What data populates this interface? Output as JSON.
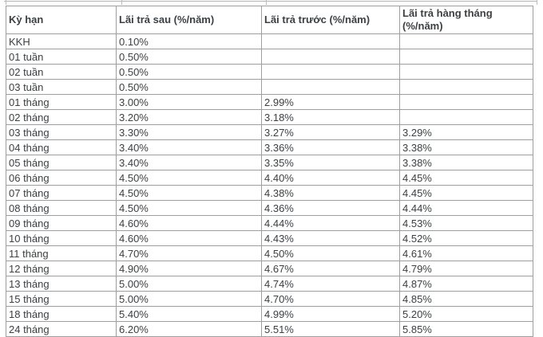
{
  "table": {
    "columns": [
      "Kỳ hạn",
      "Lãi trả sau (%/năm)",
      "Lãi trả trước (%/năm)",
      "Lãi trả hàng tháng (%/năm)"
    ],
    "column_keys": [
      "term",
      "interest-paid-after",
      "interest-paid-before",
      "interest-paid-monthly"
    ],
    "rows": [
      [
        "KKH",
        "0.10%",
        "",
        ""
      ],
      [
        "01 tuần",
        "0.50%",
        "",
        ""
      ],
      [
        "02 tuần",
        "0.50%",
        "",
        ""
      ],
      [
        "03 tuần",
        "0.50%",
        "",
        ""
      ],
      [
        "01 tháng",
        "3.00%",
        "2.99%",
        ""
      ],
      [
        "02 tháng",
        "3.20%",
        "3.18%",
        ""
      ],
      [
        "03 tháng",
        "3.30%",
        "3.27%",
        "3.29%"
      ],
      [
        "04 tháng",
        "3.40%",
        "3.36%",
        "3.38%"
      ],
      [
        "05 tháng",
        "3.40%",
        "3.35%",
        "3.38%"
      ],
      [
        "06 tháng",
        "4.50%",
        "4.40%",
        "4.45%"
      ],
      [
        "07 tháng",
        "4.50%",
        "4.38%",
        "4.45%"
      ],
      [
        "08 tháng",
        "4.50%",
        "4.36%",
        "4.44%"
      ],
      [
        "09 tháng",
        "4.60%",
        "4.44%",
        "4.53%"
      ],
      [
        "10 tháng",
        "4.60%",
        "4.43%",
        "4.52%"
      ],
      [
        "11 tháng",
        "4.70%",
        "4.50%",
        "4.61%"
      ],
      [
        "12 tháng",
        "4.90%",
        "4.67%",
        "4.79%"
      ],
      [
        "13 tháng",
        "5.00%",
        "4.74%",
        "4.87%"
      ],
      [
        "15 tháng",
        "5.00%",
        "4.70%",
        "4.85%"
      ],
      [
        "18 tháng",
        "5.40%",
        "4.99%",
        "5.20%"
      ],
      [
        "24 tháng",
        "6.20%",
        "5.51%",
        "5.85%"
      ]
    ]
  },
  "colors": {
    "border": "#9e9e9e",
    "text": "#3c4043",
    "background": "#ffffff"
  }
}
